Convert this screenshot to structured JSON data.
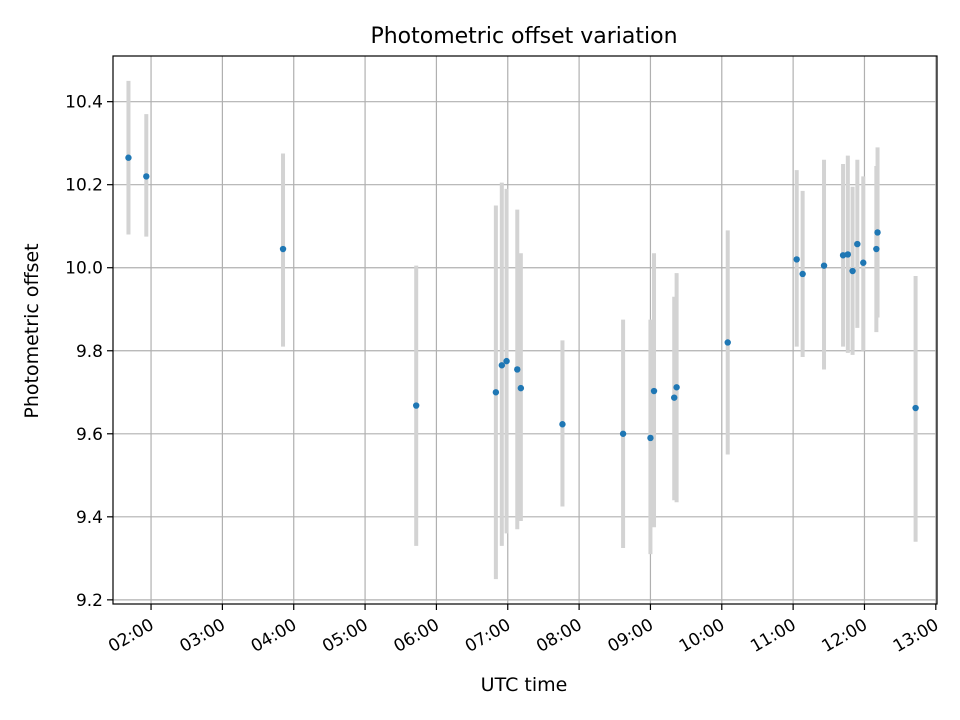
{
  "chart_data": {
    "type": "scatter",
    "title": "Photometric offset variation",
    "xlabel": "UTC time",
    "ylabel": "Photometric offset",
    "xlim": [
      "01:28",
      "13:01"
    ],
    "ylim": [
      9.19,
      10.51
    ],
    "grid": true,
    "x_ticks": [
      "02:00",
      "03:00",
      "04:00",
      "05:00",
      "06:00",
      "07:00",
      "08:00",
      "09:00",
      "10:00",
      "11:00",
      "12:00",
      "13:00"
    ],
    "y_ticks": [
      "9.2",
      "9.4",
      "9.6",
      "9.8",
      "10.0",
      "10.2",
      "10.4"
    ],
    "colors": {
      "points": "#1f77b4",
      "error_bars": "#d3d3d3",
      "grid": "#b0b0b0"
    },
    "series": [
      {
        "points": [
          {
            "x": "01:41",
            "y": 10.265,
            "ylo": 10.08,
            "yhi": 10.45
          },
          {
            "x": "01:56",
            "y": 10.22,
            "ylo": 10.075,
            "yhi": 10.37
          },
          {
            "x": "03:51",
            "y": 10.045,
            "ylo": 9.81,
            "yhi": 10.275
          },
          {
            "x": "05:43",
            "y": 9.668,
            "ylo": 9.33,
            "yhi": 10.005
          },
          {
            "x": "06:50",
            "y": 9.7,
            "ylo": 9.25,
            "yhi": 10.15
          },
          {
            "x": "06:55",
            "y": 9.765,
            "ylo": 9.33,
            "yhi": 10.205
          },
          {
            "x": "06:59",
            "y": 9.775,
            "ylo": 9.36,
            "yhi": 10.19
          },
          {
            "x": "07:08",
            "y": 9.755,
            "ylo": 9.37,
            "yhi": 10.14
          },
          {
            "x": "07:11",
            "y": 9.71,
            "ylo": 9.39,
            "yhi": 10.035
          },
          {
            "x": "07:46",
            "y": 9.623,
            "ylo": 9.425,
            "yhi": 9.825
          },
          {
            "x": "08:37",
            "y": 9.6,
            "ylo": 9.325,
            "yhi": 9.875
          },
          {
            "x": "09:00",
            "y": 9.59,
            "ylo": 9.31,
            "yhi": 9.875
          },
          {
            "x": "09:03",
            "y": 9.703,
            "ylo": 9.375,
            "yhi": 10.035
          },
          {
            "x": "09:20",
            "y": 9.687,
            "ylo": 9.44,
            "yhi": 9.93
          },
          {
            "x": "09:22",
            "y": 9.712,
            "ylo": 9.435,
            "yhi": 9.987
          },
          {
            "x": "10:05",
            "y": 9.82,
            "ylo": 9.55,
            "yhi": 10.09
          },
          {
            "x": "11:03",
            "y": 10.02,
            "ylo": 9.81,
            "yhi": 10.235
          },
          {
            "x": "11:08",
            "y": 9.985,
            "ylo": 9.785,
            "yhi": 10.185
          },
          {
            "x": "11:26",
            "y": 10.005,
            "ylo": 9.755,
            "yhi": 10.26
          },
          {
            "x": "11:42",
            "y": 10.03,
            "ylo": 9.81,
            "yhi": 10.25
          },
          {
            "x": "11:46",
            "y": 10.032,
            "ylo": 9.795,
            "yhi": 10.27
          },
          {
            "x": "11:50",
            "y": 9.992,
            "ylo": 9.79,
            "yhi": 10.195
          },
          {
            "x": "11:54",
            "y": 10.057,
            "ylo": 9.855,
            "yhi": 10.26
          },
          {
            "x": "11:59",
            "y": 10.012,
            "ylo": 9.8,
            "yhi": 10.22
          },
          {
            "x": "12:10",
            "y": 10.045,
            "ylo": 9.845,
            "yhi": 10.245
          },
          {
            "x": "12:11",
            "y": 10.085,
            "ylo": 9.88,
            "yhi": 10.29
          },
          {
            "x": "12:43",
            "y": 9.662,
            "ylo": 9.34,
            "yhi": 9.98
          }
        ]
      }
    ]
  }
}
